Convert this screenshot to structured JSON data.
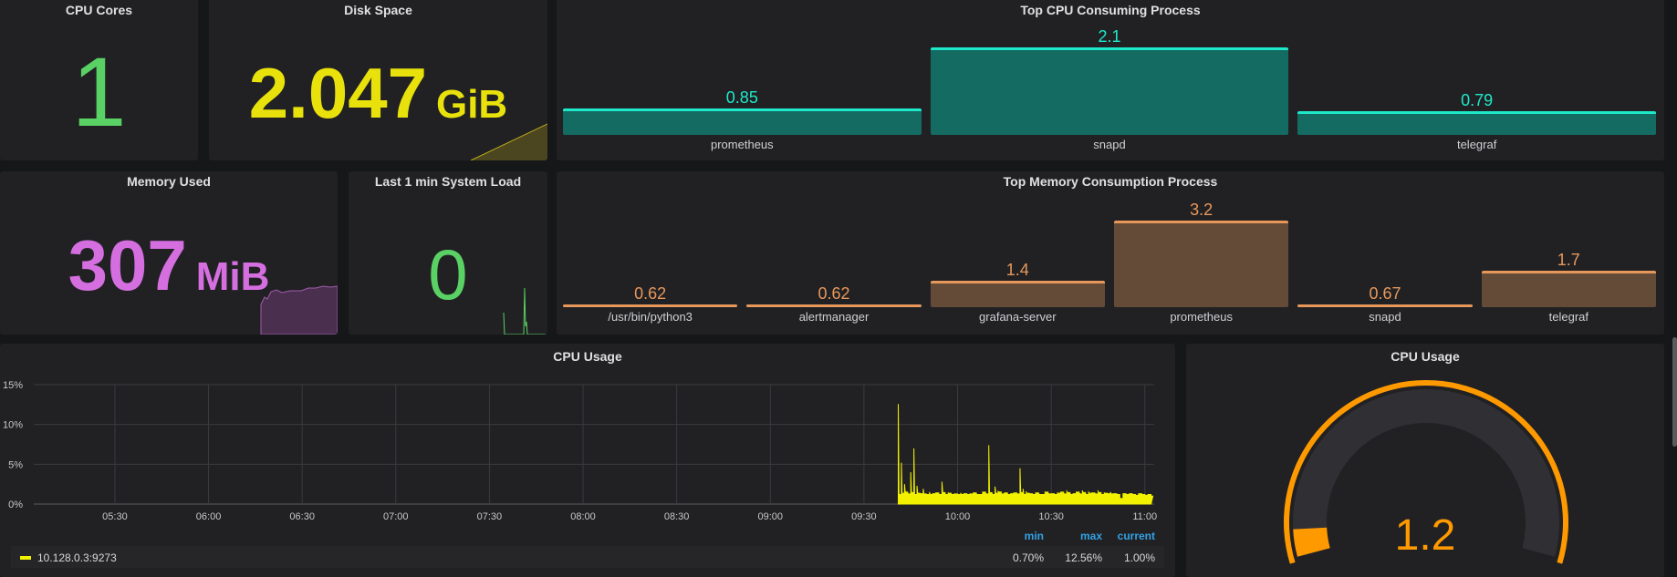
{
  "panels": {
    "cpu_cores": {
      "title": "CPU Cores",
      "value": "1",
      "color": "#5ad164"
    },
    "disk_space": {
      "title": "Disk Space",
      "value": "2.047",
      "unit": "GiB",
      "color": "#e8e10b"
    },
    "memory_used": {
      "title": "Memory Used",
      "value": "307",
      "unit": "MiB",
      "color": "#d56fe0"
    },
    "system_load": {
      "title": "Last 1 min System Load",
      "value": "0",
      "color": "#5ad164"
    }
  },
  "chart_data": [
    {
      "type": "bar",
      "title": "Top CPU Consuming Process",
      "categories": [
        "prometheus",
        "snapd",
        "telegraf"
      ],
      "values": [
        0.85,
        2.1,
        0.79
      ],
      "labels": [
        "0.85",
        "2.1",
        "0.79"
      ],
      "ylim": [
        0.31,
        2.1
      ],
      "color": "#1de9c9",
      "fill": "#136b61"
    },
    {
      "type": "bar",
      "title": "Top Memory Consumption Process",
      "categories": [
        "/usr/bin/python3",
        "alertmanager",
        "grafana-server",
        "prometheus",
        "snapd",
        "telegraf"
      ],
      "values": [
        0.62,
        0.62,
        1.4,
        3.2,
        0.67,
        1.7
      ],
      "labels": [
        "0.62",
        "0.62",
        "1.4",
        "3.2",
        "0.67",
        "1.7"
      ],
      "ylim": [
        0.62,
        3.2
      ],
      "color": "#e8975a",
      "fill": "#634b38"
    },
    {
      "type": "area",
      "title": "CPU Usage",
      "y_ticks": [
        "0%",
        "5%",
        "10%",
        "15%"
      ],
      "ylim": [
        0,
        15
      ],
      "x_ticks": [
        "05:30",
        "06:00",
        "06:30",
        "07:00",
        "07:30",
        "08:00",
        "08:30",
        "09:00",
        "09:30",
        "10:00",
        "10:30",
        "11:00"
      ],
      "xlim": [
        "05:04",
        "11:03"
      ],
      "grid": true,
      "legend_position": "bottom",
      "legend_headers": {
        "min": "min",
        "max": "max",
        "current": "current"
      },
      "series": [
        {
          "name": "10.128.0.3:9273",
          "color": "#f2f200",
          "min": "0.70%",
          "max": "12.56%",
          "current": "1.00%",
          "points": [
            [
              "09:41",
              12.56
            ],
            [
              "09:42",
              5.2
            ],
            [
              "09:43",
              2.5
            ],
            [
              "09:44",
              1.4
            ],
            [
              "09:45",
              4.0
            ],
            [
              "09:46",
              7.0
            ],
            [
              "09:47",
              2.3
            ],
            [
              "09:48",
              1.3
            ],
            [
              "09:49",
              1.9
            ],
            [
              "09:50",
              1.2
            ],
            [
              "09:51",
              1.5
            ],
            [
              "09:52",
              1.3
            ],
            [
              "09:53",
              1.4
            ],
            [
              "09:54",
              1.2
            ],
            [
              "09:55",
              2.8
            ],
            [
              "09:56",
              1.3
            ],
            [
              "09:57",
              1.4
            ],
            [
              "09:58",
              1.2
            ],
            [
              "09:59",
              1.3
            ],
            [
              "10:00",
              1.2
            ],
            [
              "10:01",
              1.4
            ],
            [
              "10:02",
              1.3
            ],
            [
              "10:03",
              1.2
            ],
            [
              "10:04",
              1.3
            ],
            [
              "10:05",
              1.4
            ],
            [
              "10:06",
              1.3
            ],
            [
              "10:07",
              1.2
            ],
            [
              "10:08",
              1.5
            ],
            [
              "10:09",
              1.3
            ],
            [
              "10:10",
              7.4
            ],
            [
              "10:11",
              1.4
            ],
            [
              "10:12",
              2.2
            ],
            [
              "10:13",
              1.6
            ],
            [
              "10:14",
              1.3
            ],
            [
              "10:15",
              1.4
            ],
            [
              "10:16",
              1.2
            ],
            [
              "10:17",
              1.3
            ],
            [
              "10:18",
              1.4
            ],
            [
              "10:19",
              1.3
            ],
            [
              "10:20",
              4.5
            ],
            [
              "10:21",
              1.9
            ],
            [
              "10:22",
              1.5
            ],
            [
              "10:23",
              1.3
            ],
            [
              "10:24",
              1.2
            ],
            [
              "10:25",
              1.4
            ],
            [
              "10:26",
              1.3
            ],
            [
              "10:27",
              1.2
            ],
            [
              "10:28",
              1.5
            ],
            [
              "10:29",
              1.4
            ],
            [
              "10:30",
              1.3
            ],
            [
              "10:31",
              1.2
            ],
            [
              "10:32",
              1.4
            ],
            [
              "10:33",
              1.5
            ],
            [
              "10:34",
              1.3
            ],
            [
              "10:35",
              1.6
            ],
            [
              "10:36",
              1.4
            ],
            [
              "10:37",
              1.3
            ],
            [
              "10:38",
              1.5
            ],
            [
              "10:39",
              1.4
            ],
            [
              "10:40",
              1.7
            ],
            [
              "10:41",
              1.3
            ],
            [
              "10:42",
              1.5
            ],
            [
              "10:43",
              1.4
            ],
            [
              "10:44",
              1.3
            ],
            [
              "10:45",
              1.6
            ],
            [
              "10:46",
              1.2
            ],
            [
              "10:47",
              1.4
            ],
            [
              "10:48",
              1.3
            ],
            [
              "10:49",
              1.5
            ],
            [
              "10:50",
              1.3
            ],
            [
              "10:51",
              1.2
            ],
            [
              "10:52",
              0.7
            ],
            [
              "10:53",
              1.3
            ],
            [
              "10:54",
              1.2
            ],
            [
              "10:55",
              1.3
            ],
            [
              "10:56",
              1.2
            ],
            [
              "10:57",
              1.1
            ],
            [
              "10:58",
              1.3
            ],
            [
              "10:59",
              1.2
            ],
            [
              "11:00",
              1.1
            ],
            [
              "11:01",
              1.2
            ],
            [
              "11:02",
              1.0
            ]
          ]
        }
      ]
    },
    {
      "type": "gauge",
      "title": "CPU Usage",
      "value": 1.2,
      "label": "1.2",
      "range": [
        0,
        100
      ],
      "color": "#ff9900"
    }
  ]
}
